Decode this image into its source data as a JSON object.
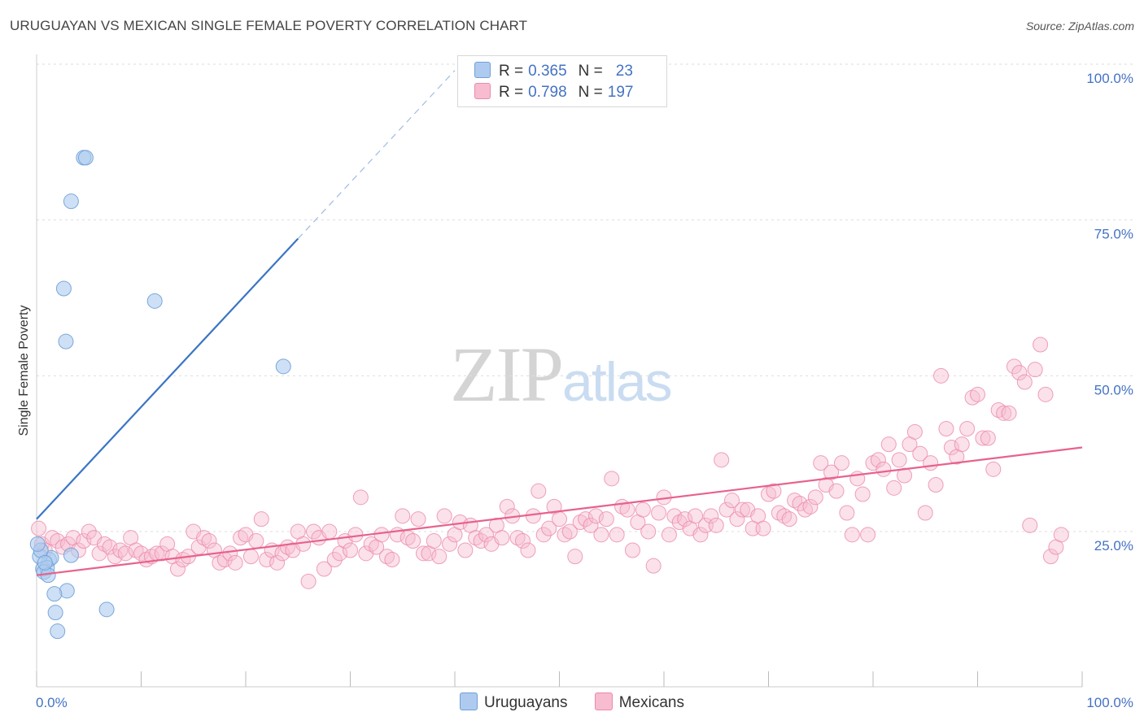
{
  "header": {
    "title": "URUGUAYAN VS MEXICAN SINGLE FEMALE POVERTY CORRELATION CHART",
    "source": "Source: ZipAtlas.com"
  },
  "watermark": {
    "zip": "ZIP",
    "atlas": "atlas"
  },
  "colors": {
    "uruguayan_fill": "#aecbef",
    "uruguayan_stroke": "#6f9fd8",
    "uruguayan_line": "#3a75c4",
    "mexican_fill": "#f7bcd0",
    "mexican_stroke": "#eb8aa9",
    "mexican_line": "#e7628c",
    "tick_text": "#4472c4",
    "grid": "#dddddd"
  },
  "legend": {
    "rows": [
      {
        "r_label": "R =",
        "r_value": "0.365",
        "n_label": "N =",
        "n_value": "23"
      },
      {
        "r_label": "R =",
        "r_value": "0.798",
        "n_label": "N =",
        "n_value": "197"
      }
    ],
    "series": [
      "Uruguayans",
      "Mexicans"
    ]
  },
  "chart_data": {
    "type": "scatter",
    "title": "URUGUAYAN VS MEXICAN SINGLE FEMALE POVERTY CORRELATION CHART",
    "xlabel": "",
    "ylabel": "Single Female Poverty",
    "xlim": [
      0,
      100
    ],
    "ylim": [
      0,
      105
    ],
    "x_tick_labels": [
      "0.0%",
      "100.0%"
    ],
    "y_ticks": [
      25,
      50,
      75,
      100
    ],
    "y_tick_labels": [
      "25.0%",
      "50.0%",
      "75.0%",
      "100.0%"
    ],
    "grid": true,
    "legend_position": "top-center",
    "series": [
      {
        "name": "Uruguayans",
        "r": 0.365,
        "n": 23,
        "trend": {
          "x0": 0,
          "y0": 27,
          "x1": 25,
          "y1": 72,
          "dashed_to_x": 40
        },
        "points": [
          [
            4.5,
            85
          ],
          [
            4.7,
            85
          ],
          [
            3.3,
            78
          ],
          [
            2.6,
            64
          ],
          [
            11.3,
            62
          ],
          [
            2.8,
            55.5
          ],
          [
            23.6,
            51.5
          ],
          [
            1.2,
            20.5
          ],
          [
            1.4,
            20.8
          ],
          [
            3.3,
            21.2
          ],
          [
            0.3,
            21
          ],
          [
            0.4,
            22
          ],
          [
            0.6,
            19
          ],
          [
            1.0,
            19.2
          ],
          [
            0.7,
            18.5
          ],
          [
            1.1,
            18
          ],
          [
            2.9,
            15.5
          ],
          [
            1.7,
            15
          ],
          [
            1.8,
            12
          ],
          [
            6.7,
            12.5
          ],
          [
            2.0,
            9
          ],
          [
            0.1,
            23
          ],
          [
            0.8,
            20
          ]
        ]
      },
      {
        "name": "Mexicans",
        "r": 0.798,
        "n": 197,
        "trend": {
          "x0": 0,
          "y0": 18,
          "x1": 100,
          "y1": 38.5
        },
        "points": [
          [
            0.2,
            25.5
          ],
          [
            0.5,
            23
          ],
          [
            0.8,
            22
          ],
          [
            1.5,
            24
          ],
          [
            2.0,
            23.5
          ],
          [
            2.5,
            22.5
          ],
          [
            3.0,
            23
          ],
          [
            3.5,
            24
          ],
          [
            4.0,
            22
          ],
          [
            4.5,
            23.5
          ],
          [
            5.0,
            25
          ],
          [
            5.5,
            24
          ],
          [
            6.0,
            21.5
          ],
          [
            6.5,
            23
          ],
          [
            7.0,
            22.5
          ],
          [
            7.5,
            21
          ],
          [
            8.0,
            22
          ],
          [
            8.5,
            21.5
          ],
          [
            9.0,
            24
          ],
          [
            9.5,
            22
          ],
          [
            10.0,
            21.5
          ],
          [
            10.5,
            20.5
          ],
          [
            11.0,
            21
          ],
          [
            11.5,
            21.5
          ],
          [
            12.0,
            21.5
          ],
          [
            12.5,
            23
          ],
          [
            13.0,
            21
          ],
          [
            13.5,
            19
          ],
          [
            14.0,
            20.5
          ],
          [
            14.5,
            21
          ],
          [
            15.0,
            25
          ],
          [
            15.5,
            22.5
          ],
          [
            16.0,
            24
          ],
          [
            16.5,
            23.5
          ],
          [
            17.0,
            22
          ],
          [
            17.5,
            20
          ],
          [
            18.0,
            20.5
          ],
          [
            18.5,
            21.5
          ],
          [
            19.0,
            20
          ],
          [
            19.5,
            24
          ],
          [
            20.0,
            24.5
          ],
          [
            20.5,
            21
          ],
          [
            21.0,
            23.5
          ],
          [
            21.5,
            27
          ],
          [
            22.0,
            20.5
          ],
          [
            22.5,
            22
          ],
          [
            23.0,
            20
          ],
          [
            23.5,
            21.5
          ],
          [
            24.0,
            22.5
          ],
          [
            24.5,
            22
          ],
          [
            25.0,
            25
          ],
          [
            25.5,
            23
          ],
          [
            26.0,
            17
          ],
          [
            26.5,
            25
          ],
          [
            27.0,
            24
          ],
          [
            27.5,
            19
          ],
          [
            28.0,
            25
          ],
          [
            28.5,
            20.5
          ],
          [
            29.0,
            21.5
          ],
          [
            29.5,
            23.5
          ],
          [
            30.0,
            22
          ],
          [
            30.5,
            24.5
          ],
          [
            31.0,
            30.5
          ],
          [
            31.5,
            21.5
          ],
          [
            32.0,
            23
          ],
          [
            32.5,
            22.5
          ],
          [
            33.0,
            24.5
          ],
          [
            33.5,
            21
          ],
          [
            34.0,
            20.5
          ],
          [
            34.5,
            24.5
          ],
          [
            35.0,
            27.5
          ],
          [
            35.5,
            24
          ],
          [
            36.0,
            23.5
          ],
          [
            36.5,
            27
          ],
          [
            37.0,
            21.5
          ],
          [
            37.5,
            21.5
          ],
          [
            38.0,
            23.5
          ],
          [
            38.5,
            21
          ],
          [
            39.0,
            27.5
          ],
          [
            39.5,
            23
          ],
          [
            40.0,
            24.5
          ],
          [
            40.5,
            26.5
          ],
          [
            41.0,
            22
          ],
          [
            41.5,
            26
          ],
          [
            42.0,
            24
          ],
          [
            42.5,
            23.5
          ],
          [
            43.0,
            24.5
          ],
          [
            43.5,
            23
          ],
          [
            44.0,
            26
          ],
          [
            44.5,
            24
          ],
          [
            45.0,
            29
          ],
          [
            45.5,
            27.5
          ],
          [
            46.0,
            24
          ],
          [
            46.5,
            23.5
          ],
          [
            47.0,
            22
          ],
          [
            47.5,
            27.5
          ],
          [
            48.0,
            31.5
          ],
          [
            48.5,
            24.5
          ],
          [
            49.0,
            25.5
          ],
          [
            49.5,
            29
          ],
          [
            50.0,
            27
          ],
          [
            50.5,
            24.5
          ],
          [
            51.0,
            25
          ],
          [
            51.5,
            21
          ],
          [
            52.0,
            26.5
          ],
          [
            52.5,
            27
          ],
          [
            53.0,
            26
          ],
          [
            53.5,
            27.5
          ],
          [
            54.0,
            24.5
          ],
          [
            54.5,
            27
          ],
          [
            55.0,
            33.5
          ],
          [
            55.5,
            24.5
          ],
          [
            56.0,
            29
          ],
          [
            56.5,
            28.5
          ],
          [
            57.0,
            22
          ],
          [
            57.5,
            26.5
          ],
          [
            58.0,
            28.5
          ],
          [
            58.5,
            25
          ],
          [
            59.0,
            19.5
          ],
          [
            59.5,
            28
          ],
          [
            60.0,
            30.5
          ],
          [
            60.5,
            24.5
          ],
          [
            61.0,
            27.5
          ],
          [
            61.5,
            26.5
          ],
          [
            62.0,
            27
          ],
          [
            62.5,
            25.5
          ],
          [
            63.0,
            27.5
          ],
          [
            63.5,
            24.5
          ],
          [
            64.0,
            26
          ],
          [
            64.5,
            27.5
          ],
          [
            65.0,
            26
          ],
          [
            65.5,
            36.5
          ],
          [
            66.0,
            28.5
          ],
          [
            66.5,
            30
          ],
          [
            67.0,
            27
          ],
          [
            67.5,
            28.5
          ],
          [
            68.0,
            28.5
          ],
          [
            68.5,
            25.5
          ],
          [
            69.0,
            27.5
          ],
          [
            69.5,
            25.5
          ],
          [
            70.0,
            31
          ],
          [
            70.5,
            31.5
          ],
          [
            71.0,
            28
          ],
          [
            71.5,
            27.5
          ],
          [
            72.0,
            27
          ],
          [
            72.5,
            30
          ],
          [
            73.0,
            29.5
          ],
          [
            73.5,
            28.5
          ],
          [
            74.0,
            29
          ],
          [
            74.5,
            30.5
          ],
          [
            75.0,
            36
          ],
          [
            75.5,
            32.5
          ],
          [
            76.0,
            34.5
          ],
          [
            76.5,
            31.5
          ],
          [
            77.0,
            36
          ],
          [
            77.5,
            28
          ],
          [
            78.0,
            24.5
          ],
          [
            78.5,
            33.5
          ],
          [
            79.0,
            31
          ],
          [
            79.5,
            24.5
          ],
          [
            80.0,
            36
          ],
          [
            80.5,
            36.5
          ],
          [
            81.0,
            35
          ],
          [
            81.5,
            39
          ],
          [
            82.0,
            32
          ],
          [
            82.5,
            36.5
          ],
          [
            83.0,
            34
          ],
          [
            83.5,
            39
          ],
          [
            84.0,
            41
          ],
          [
            84.5,
            37.5
          ],
          [
            85.0,
            28
          ],
          [
            85.5,
            36
          ],
          [
            86.0,
            32.5
          ],
          [
            86.5,
            50
          ],
          [
            87.0,
            41.5
          ],
          [
            87.5,
            38.5
          ],
          [
            88.0,
            37
          ],
          [
            88.5,
            39
          ],
          [
            89.0,
            41.5
          ],
          [
            89.5,
            46.5
          ],
          [
            90.0,
            47
          ],
          [
            90.5,
            40
          ],
          [
            91.0,
            40
          ],
          [
            91.5,
            35
          ],
          [
            92.0,
            44.5
          ],
          [
            92.5,
            44
          ],
          [
            93.0,
            44
          ],
          [
            93.5,
            51.5
          ],
          [
            94.0,
            50.5
          ],
          [
            94.5,
            49
          ],
          [
            95.0,
            26
          ],
          [
            95.5,
            51
          ],
          [
            96.0,
            55
          ],
          [
            96.5,
            47
          ],
          [
            97.0,
            21
          ],
          [
            97.5,
            22.5
          ],
          [
            98.0,
            24.5
          ]
        ]
      }
    ]
  }
}
